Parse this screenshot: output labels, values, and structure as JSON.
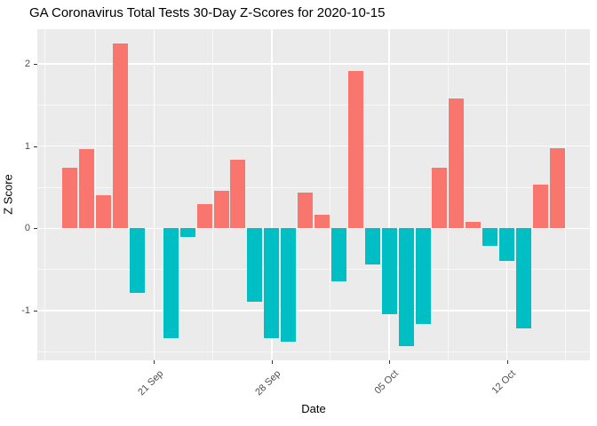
{
  "chart_data": {
    "type": "bar",
    "title": "GA Coronavirus Total Tests 30-Day Z-Scores for 2020-10-15",
    "xlabel": "Date",
    "ylabel": "Z Score",
    "legend": "none",
    "grid": "on",
    "ylim": [
      -1.6,
      2.42
    ],
    "points": [
      {
        "date": "2020-09-16",
        "value": 0.74
      },
      {
        "date": "2020-09-17",
        "value": 0.96
      },
      {
        "date": "2020-09-18",
        "value": 0.4
      },
      {
        "date": "2020-09-19",
        "value": 2.25
      },
      {
        "date": "2020-09-20",
        "value": -0.79
      },
      {
        "date": "2020-09-22",
        "value": -1.34
      },
      {
        "date": "2020-09-23",
        "value": -0.11
      },
      {
        "date": "2020-09-24",
        "value": 0.29
      },
      {
        "date": "2020-09-25",
        "value": 0.46
      },
      {
        "date": "2020-09-26",
        "value": 0.83
      },
      {
        "date": "2020-09-27",
        "value": -0.89
      },
      {
        "date": "2020-09-28",
        "value": -1.34
      },
      {
        "date": "2020-09-29",
        "value": -1.38
      },
      {
        "date": "2020-09-30",
        "value": 0.43
      },
      {
        "date": "2020-10-01",
        "value": 0.16
      },
      {
        "date": "2020-10-02",
        "value": -0.64
      },
      {
        "date": "2020-10-03",
        "value": 1.91
      },
      {
        "date": "2020-10-04",
        "value": -0.44
      },
      {
        "date": "2020-10-05",
        "value": -1.04
      },
      {
        "date": "2020-10-06",
        "value": -1.43
      },
      {
        "date": "2020-10-07",
        "value": -1.16
      },
      {
        "date": "2020-10-08",
        "value": 0.74
      },
      {
        "date": "2020-10-09",
        "value": 1.58
      },
      {
        "date": "2020-10-10",
        "value": 0.08
      },
      {
        "date": "2020-10-11",
        "value": -0.21
      },
      {
        "date": "2020-10-12",
        "value": -0.4
      },
      {
        "date": "2020-10-13",
        "value": -1.22
      },
      {
        "date": "2020-10-14",
        "value": 0.53
      },
      {
        "date": "2020-10-15",
        "value": 0.97
      }
    ],
    "missing_dates": [
      "2020-09-21"
    ],
    "x_ticks": [
      {
        "date": "2020-09-21",
        "label": "21 Sep"
      },
      {
        "date": "2020-09-28",
        "label": "28 Sep"
      },
      {
        "date": "2020-10-05",
        "label": "05 Oct"
      },
      {
        "date": "2020-10-12",
        "label": "12 Oct"
      }
    ],
    "x_minor_offsets": [
      -1.5,
      1.5,
      8.5,
      15.5,
      22.5,
      29.5
    ],
    "y_ticks": [
      {
        "value": 2,
        "label": "2"
      },
      {
        "value": 1,
        "label": "1"
      },
      {
        "value": 0,
        "label": "0"
      },
      {
        "value": -1,
        "label": "-1"
      }
    ],
    "y_minor": [
      1.5,
      0.5,
      -0.5,
      -1.5
    ],
    "colors": {
      "positive": "#F8766D",
      "negative": "#00BFC4",
      "panel_bg": "#EBEBEB",
      "grid": "#FFFFFF",
      "axis_text": "#4D4D4D",
      "tick_mark": "#333333",
      "title_text": "#000000"
    }
  }
}
